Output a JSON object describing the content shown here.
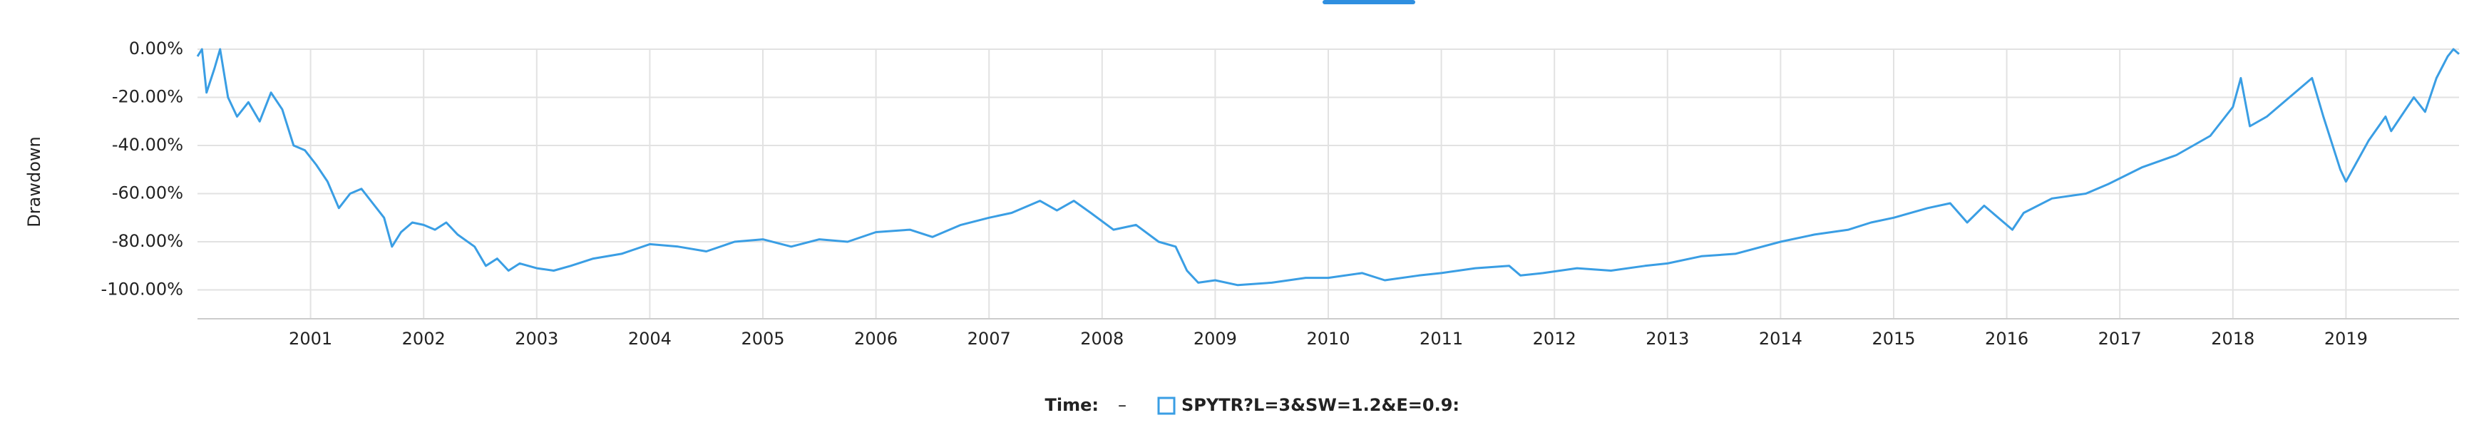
{
  "chart_data": {
    "type": "line",
    "y_label": "Drawdown",
    "legend_time_label": "Time:",
    "legend_time_value": "–",
    "xlim": [
      2000,
      2020
    ],
    "xticks": [
      2001,
      2002,
      2003,
      2004,
      2005,
      2006,
      2007,
      2008,
      2009,
      2010,
      2011,
      2012,
      2013,
      2014,
      2015,
      2016,
      2017,
      2018,
      2019
    ],
    "ylim": [
      -112,
      0
    ],
    "yticks": [
      {
        "value": 0,
        "label": "0.00%"
      },
      {
        "value": -20,
        "label": "-20.00%"
      },
      {
        "value": -40,
        "label": "-40.00%"
      },
      {
        "value": -60,
        "label": "-60.00%"
      },
      {
        "value": -80,
        "label": "-80.00%"
      },
      {
        "value": -100,
        "label": "-100.00%"
      }
    ],
    "grid": true,
    "x": [
      2000.0,
      2000.04,
      2000.08,
      2000.15,
      2000.2,
      2000.27,
      2000.35,
      2000.45,
      2000.55,
      2000.65,
      2000.75,
      2000.85,
      2000.95,
      2001.05,
      2001.15,
      2001.25,
      2001.35,
      2001.45,
      2001.55,
      2001.65,
      2001.72,
      2001.8,
      2001.9,
      2002.0,
      2002.1,
      2002.2,
      2002.3,
      2002.45,
      2002.55,
      2002.65,
      2002.75,
      2002.85,
      2003.0,
      2003.15,
      2003.3,
      2003.5,
      2003.75,
      2004.0,
      2004.25,
      2004.5,
      2004.75,
      2005.0,
      2005.25,
      2005.5,
      2005.75,
      2006.0,
      2006.3,
      2006.5,
      2006.75,
      2007.0,
      2007.2,
      2007.45,
      2007.6,
      2007.75,
      2007.9,
      2008.1,
      2008.3,
      2008.5,
      2008.65,
      2008.75,
      2008.85,
      2009.0,
      2009.2,
      2009.5,
      2009.8,
      2010.0,
      2010.3,
      2010.5,
      2010.8,
      2011.0,
      2011.3,
      2011.6,
      2011.7,
      2011.9,
      2012.2,
      2012.5,
      2012.8,
      2013.0,
      2013.3,
      2013.6,
      2014.0,
      2014.3,
      2014.6,
      2014.8,
      2015.0,
      2015.3,
      2015.5,
      2015.65,
      2015.8,
      2016.05,
      2016.15,
      2016.4,
      2016.7,
      2016.9,
      2017.2,
      2017.5,
      2017.8,
      2018.0,
      2018.07,
      2018.15,
      2018.3,
      2018.5,
      2018.7,
      2018.8,
      2018.95,
      2019.0,
      2019.2,
      2019.35,
      2019.4,
      2019.6,
      2019.7,
      2019.8,
      2019.9,
      2019.95,
      2020.0
    ],
    "series": [
      {
        "name": "SPYTR?L=3&SW=1.2&E=0.9:",
        "color": "#3a9ee4",
        "values": [
          -3,
          0,
          -18,
          -8,
          0,
          -20,
          -28,
          -22,
          -30,
          -18,
          -25,
          -40,
          -42,
          -48,
          -55,
          -66,
          -60,
          -58,
          -64,
          -70,
          -82,
          -76,
          -72,
          -73,
          -75,
          -72,
          -77,
          -82,
          -90,
          -87,
          -92,
          -89,
          -91,
          -92,
          -90,
          -87,
          -85,
          -81,
          -82,
          -84,
          -80,
          -79,
          -82,
          -79,
          -80,
          -76,
          -75,
          -78,
          -73,
          -70,
          -68,
          -63,
          -67,
          -63,
          -68,
          -75,
          -73,
          -80,
          -82,
          -92,
          -97,
          -96,
          -98,
          -97,
          -95,
          -95,
          -93,
          -96,
          -94,
          -93,
          -91,
          -90,
          -94,
          -93,
          -91,
          -92,
          -90,
          -89,
          -86,
          -85,
          -80,
          -77,
          -75,
          -72,
          -70,
          -66,
          -64,
          -72,
          -65,
          -75,
          -68,
          -62,
          -60,
          -56,
          -49,
          -44,
          -36,
          -24,
          -12,
          -32,
          -28,
          -20,
          -12,
          -28,
          -50,
          -55,
          -38,
          -28,
          -34,
          -20,
          -26,
          -12,
          -3,
          0,
          -2
        ]
      }
    ]
  }
}
